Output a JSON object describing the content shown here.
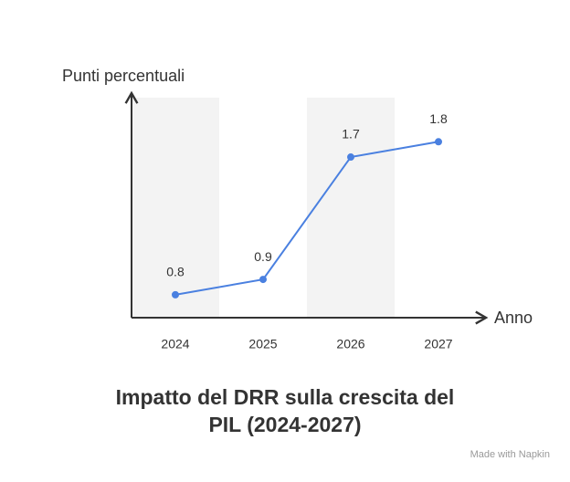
{
  "chart_data": {
    "type": "line",
    "title": "Impatto del DRR sulla crescita del PIL (2024-2027)",
    "y_label": "Punti percentuali",
    "x_label": "Anno",
    "categories": [
      "2024",
      "2025",
      "2026",
      "2027"
    ],
    "values": [
      0.8,
      0.9,
      1.7,
      1.8
    ],
    "color": "#4a80e0",
    "ylim": [
      0.65,
      2.1
    ],
    "footer": "Made with Napkin"
  }
}
